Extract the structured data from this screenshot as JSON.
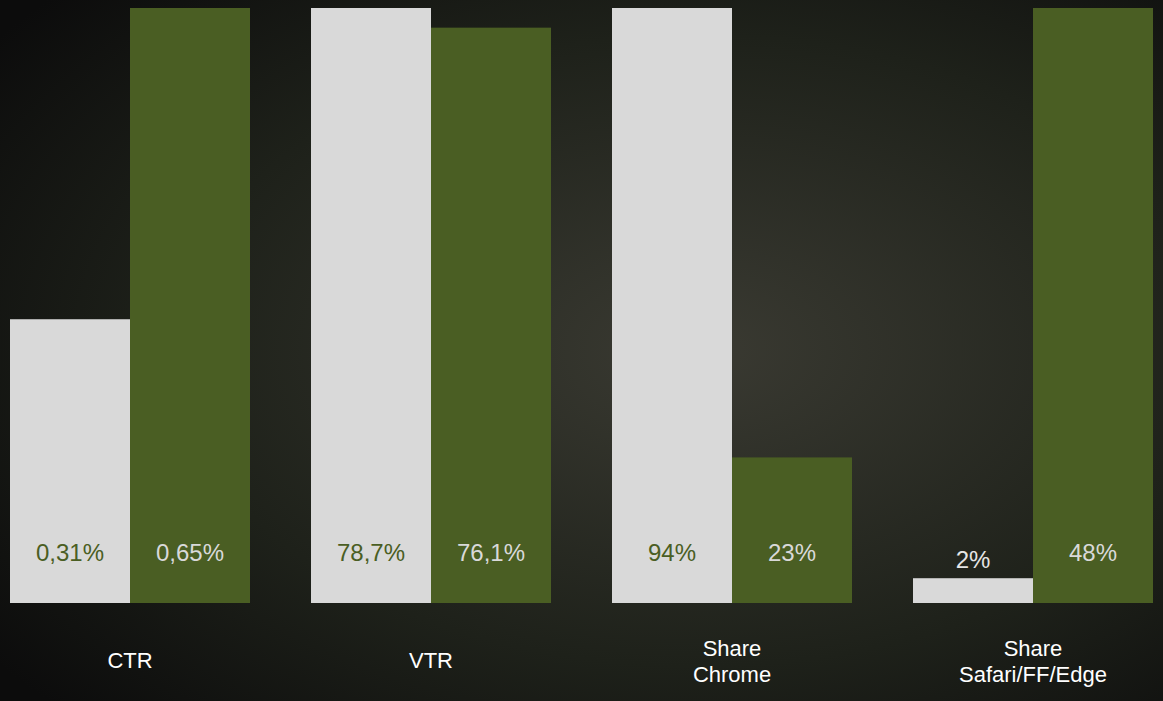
{
  "chart_data": [
    {
      "type": "bar",
      "categories": [
        "CTR"
      ],
      "ylim": [
        0,
        0.65
      ],
      "tick_labels": false,
      "data_labels": true,
      "series": [
        {
          "color": "#d9d9d9",
          "values": [
            0.31
          ],
          "value_labels": [
            "0,31%"
          ]
        },
        {
          "color": "#4a5e23",
          "values": [
            0.65
          ],
          "value_labels": [
            "0,65%"
          ]
        }
      ]
    },
    {
      "type": "bar",
      "categories": [
        "VTR"
      ],
      "ylim": [
        0,
        78.7
      ],
      "tick_labels": false,
      "data_labels": true,
      "series": [
        {
          "color": "#d9d9d9",
          "values": [
            78.7
          ],
          "value_labels": [
            "78,7%"
          ]
        },
        {
          "color": "#4a5e23",
          "values": [
            76.1
          ],
          "value_labels": [
            "76,1%"
          ]
        }
      ]
    },
    {
      "type": "bar",
      "categories": [
        "Share Chrome"
      ],
      "ylim": [
        0,
        94
      ],
      "tick_labels": false,
      "data_labels": true,
      "series": [
        {
          "color": "#d9d9d9",
          "values": [
            94
          ],
          "value_labels": [
            "94%"
          ]
        },
        {
          "color": "#4a5e23",
          "values": [
            23
          ],
          "value_labels": [
            "23%"
          ]
        }
      ]
    },
    {
      "type": "bar",
      "categories": [
        "Share Safari/FF/Edge"
      ],
      "ylim": [
        0,
        48
      ],
      "tick_labels": false,
      "data_labels": true,
      "series": [
        {
          "color": "#d9d9d9",
          "values": [
            2
          ],
          "value_labels": [
            "2%"
          ]
        },
        {
          "color": "#4a5e23",
          "values": [
            48
          ],
          "value_labels": [
            "48%"
          ]
        }
      ]
    }
  ]
}
